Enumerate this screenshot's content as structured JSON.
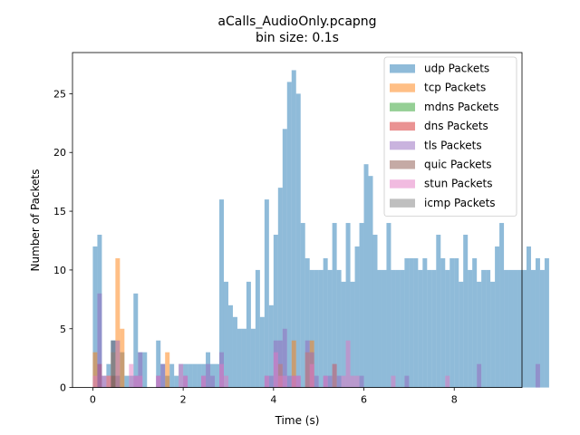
{
  "chart_data": {
    "type": "bar",
    "title": "aCalls_AudioOnly.pcapng",
    "subtitle": "bin size: 0.1s",
    "xlabel": "Time (s)",
    "ylabel": "Number of Packets",
    "xlim": [
      -0.45,
      9.5
    ],
    "ylim": [
      0,
      28.5
    ],
    "xticks": [
      0,
      2,
      4,
      6,
      8
    ],
    "yticks": [
      0,
      5,
      10,
      15,
      20,
      25
    ],
    "bin_size": 0.1,
    "bin_start": 0.0,
    "legend_position": "top-right",
    "grid": false,
    "series": [
      {
        "name": "udp Packets",
        "color": "#1f77b4",
        "values": [
          12,
          13,
          1,
          2,
          4,
          1,
          3,
          1,
          1,
          8,
          3,
          3,
          0,
          0,
          4,
          2,
          1,
          2,
          1,
          2,
          2,
          2,
          2,
          2,
          2,
          3,
          2,
          2,
          16,
          9,
          7,
          6,
          5,
          5,
          9,
          5,
          10,
          6,
          16,
          7,
          13,
          17,
          22,
          26,
          27,
          25,
          14,
          11,
          10,
          10,
          10,
          11,
          10,
          14,
          10,
          9,
          14,
          9,
          12,
          14,
          19,
          18,
          13,
          10,
          10,
          14,
          10,
          10,
          10,
          11,
          11,
          11,
          10,
          11,
          10,
          10,
          13,
          11,
          10,
          11,
          11,
          9,
          13,
          10,
          11,
          9,
          10,
          10,
          9,
          12,
          14,
          10,
          10,
          10,
          10,
          10,
          12,
          10,
          11,
          10,
          11
        ]
      },
      {
        "name": "tcp Packets",
        "color": "#ff7f0e",
        "values": [
          3,
          0,
          0,
          1,
          3,
          11,
          5,
          0,
          0,
          0,
          0,
          0,
          0,
          0,
          0,
          0,
          3,
          0,
          0,
          0,
          0,
          0,
          0,
          0,
          0,
          0,
          0,
          0,
          0,
          0,
          0,
          0,
          0,
          0,
          0,
          0,
          0,
          0,
          0,
          0,
          0,
          2,
          0,
          0,
          4,
          0,
          0,
          3,
          4,
          0,
          0,
          0,
          0,
          2,
          0,
          0,
          0,
          0,
          0,
          0,
          0,
          0,
          0,
          0,
          0,
          0,
          0,
          0,
          0,
          0,
          0,
          0,
          0,
          0,
          0,
          0,
          0,
          0,
          0,
          0,
          0,
          0,
          0,
          0,
          0,
          0,
          0,
          0,
          0,
          0,
          0,
          0,
          0,
          0,
          0,
          0,
          0,
          0,
          0,
          0,
          0
        ]
      },
      {
        "name": "mdns Packets",
        "color": "#2ca02c",
        "values": [
          0,
          0,
          0,
          0,
          4,
          0,
          0,
          0,
          0,
          0,
          0,
          0,
          0,
          0,
          0,
          0,
          0,
          0,
          0,
          0,
          0,
          0,
          0,
          0,
          0,
          0,
          0,
          0,
          0,
          0,
          0,
          0,
          0,
          0,
          0,
          0,
          0,
          0,
          0,
          0,
          0,
          0,
          0,
          0,
          0,
          0,
          0,
          0,
          0,
          0,
          0,
          0,
          0,
          0,
          0,
          0,
          0,
          0,
          0,
          0,
          0,
          0,
          0,
          0,
          0,
          0,
          0,
          0,
          0,
          0,
          0,
          0,
          0,
          0,
          0,
          0,
          0,
          0,
          0,
          0,
          0,
          0,
          0,
          0,
          0,
          0,
          0,
          0,
          0,
          0,
          0,
          0,
          0,
          0,
          0,
          0,
          0,
          0,
          0,
          0,
          0
        ]
      },
      {
        "name": "dns Packets",
        "color": "#d62728",
        "values": [
          0,
          2,
          0,
          0,
          0,
          0,
          0,
          0,
          0,
          0,
          0,
          0,
          0,
          0,
          0,
          0,
          0,
          0,
          0,
          0,
          0,
          0,
          0,
          0,
          0,
          0,
          0,
          0,
          0,
          0,
          0,
          0,
          0,
          0,
          0,
          0,
          0,
          0,
          0,
          0,
          0,
          0,
          0,
          0,
          0,
          0,
          0,
          0,
          0,
          0,
          0,
          0,
          0,
          0,
          0,
          0,
          0,
          0,
          0,
          0,
          0,
          0,
          0,
          0,
          0,
          0,
          0,
          0,
          0,
          0,
          0,
          0,
          0,
          0,
          0,
          0,
          0,
          0,
          0,
          0,
          0,
          0,
          0,
          0,
          0,
          0,
          0,
          0,
          0,
          0,
          0,
          0,
          0,
          0,
          0,
          0,
          0,
          0,
          0,
          0,
          0
        ]
      },
      {
        "name": "tls Packets",
        "color": "#9467bd",
        "values": [
          0,
          8,
          0,
          0,
          4,
          4,
          0,
          0,
          0,
          1,
          3,
          0,
          0,
          0,
          1,
          2,
          0,
          0,
          0,
          0,
          1,
          0,
          0,
          0,
          1,
          2,
          1,
          0,
          3,
          0,
          0,
          0,
          0,
          0,
          0,
          0,
          0,
          0,
          1,
          1,
          4,
          4,
          5,
          1,
          1,
          1,
          0,
          4,
          3,
          1,
          0,
          1,
          1,
          2,
          1,
          0,
          0,
          0,
          0,
          1,
          0,
          0,
          0,
          0,
          0,
          0,
          0,
          0,
          0,
          1,
          0,
          0,
          0,
          0,
          0,
          0,
          0,
          0,
          0,
          0,
          0,
          0,
          0,
          0,
          0,
          2,
          0,
          0,
          0,
          0,
          0,
          0,
          0,
          0,
          0,
          0,
          0,
          0,
          2,
          0,
          0
        ]
      },
      {
        "name": "quic Packets",
        "color": "#8c564b",
        "values": [
          0,
          0,
          0,
          0,
          1,
          0,
          0,
          0,
          0,
          0,
          0,
          0,
          0,
          0,
          0,
          0,
          0,
          0,
          0,
          0,
          0,
          0,
          0,
          0,
          0,
          0,
          0,
          0,
          0,
          0,
          0,
          0,
          0,
          0,
          0,
          0,
          0,
          0,
          0,
          0,
          0,
          0,
          0,
          0,
          0,
          0,
          0,
          0,
          0,
          0,
          0,
          0,
          0,
          0,
          0,
          0,
          0,
          0,
          0,
          0,
          0,
          0,
          0,
          0,
          0,
          0,
          0,
          0,
          0,
          0,
          0,
          0,
          0,
          0,
          0,
          0,
          0,
          0,
          0,
          0,
          0,
          0,
          0,
          0,
          0,
          0,
          0,
          0,
          0,
          0,
          0,
          0,
          0,
          0,
          0,
          0,
          0,
          0,
          0,
          0,
          0
        ]
      },
      {
        "name": "stun Packets",
        "color": "#e377c2",
        "values": [
          1,
          0,
          1,
          1,
          0,
          0,
          0,
          0,
          2,
          1,
          1,
          0,
          0,
          0,
          1,
          0,
          0,
          0,
          0,
          2,
          1,
          0,
          0,
          0,
          1,
          0,
          0,
          0,
          2,
          1,
          0,
          0,
          0,
          0,
          0,
          0,
          0,
          0,
          1,
          0,
          3,
          1,
          1,
          0,
          1,
          1,
          0,
          0,
          2,
          0,
          0,
          1,
          0,
          0,
          0,
          1,
          4,
          1,
          1,
          0,
          0,
          0,
          0,
          0,
          0,
          0,
          1,
          0,
          0,
          0,
          0,
          0,
          0,
          0,
          0,
          0,
          0,
          0,
          1,
          0,
          0,
          0,
          0,
          0,
          0,
          0,
          0,
          0,
          0,
          0,
          0,
          0,
          0,
          0,
          0,
          0,
          0,
          0,
          0,
          0,
          0
        ]
      },
      {
        "name": "icmp Packets",
        "color": "#7f7f7f",
        "values": [
          0,
          0,
          0,
          0,
          0,
          0,
          0,
          0,
          0,
          0,
          0,
          0,
          0,
          0,
          0,
          0,
          0,
          0,
          0,
          0,
          0,
          0,
          0,
          0,
          0,
          0,
          0,
          0,
          0,
          0,
          0,
          0,
          0,
          0,
          0,
          0,
          0,
          0,
          0,
          0,
          0,
          0,
          0,
          0,
          0,
          0,
          0,
          0,
          0,
          0,
          0,
          0,
          0,
          0,
          0,
          0,
          0,
          0,
          0,
          0,
          0,
          0,
          0,
          0,
          0,
          0,
          0,
          0,
          0,
          0,
          0,
          0,
          0,
          0,
          0,
          0,
          0,
          0,
          0,
          0,
          0,
          0,
          0,
          0,
          0,
          0,
          0,
          0,
          0,
          0,
          0,
          0,
          0,
          0,
          0,
          0,
          0,
          0,
          0,
          0,
          0
        ]
      }
    ]
  }
}
